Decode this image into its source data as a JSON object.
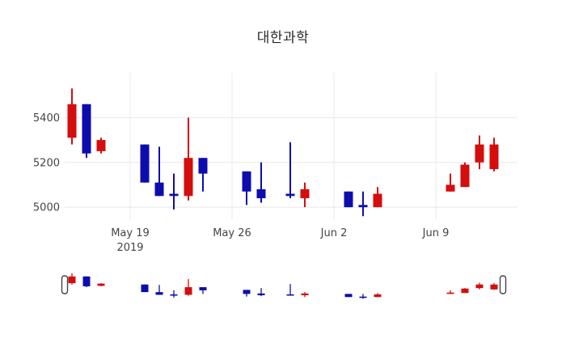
{
  "title": "대한과학",
  "colors": {
    "up": "#d40d0d",
    "down": "#0d0dad",
    "grid": "#e8e8e8",
    "axis_text": "#444444",
    "slider_handle_fill": "#ffffff",
    "slider_handle_border": "#444444",
    "background": "#ffffff"
  },
  "y_axis": {
    "ticks": [
      {
        "label": "5400",
        "value": 5400
      },
      {
        "label": "5200",
        "value": 5200
      },
      {
        "label": "5000",
        "value": 5000
      }
    ]
  },
  "x_axis": {
    "ticks": [
      {
        "label": "May 19",
        "sublabel": "2019",
        "date": "2019-05-19"
      },
      {
        "label": "May 26",
        "sublabel": "",
        "date": "2019-05-26"
      },
      {
        "label": "Jun 2",
        "sublabel": "",
        "date": "2019-06-02"
      },
      {
        "label": "Jun 9",
        "sublabel": "",
        "date": "2019-06-09"
      }
    ]
  },
  "chart_data": {
    "type": "candlestick",
    "title": "대한과학",
    "y_range": [
      4950,
      5600
    ],
    "x_range": [
      "2019-05-14",
      "2019-06-15"
    ],
    "grid": true,
    "rangeslider": true,
    "up_color": "#d40d0d",
    "down_color": "#0d0dad",
    "candles": [
      {
        "date": "2019-05-15",
        "open": 5310,
        "high": 5530,
        "low": 5280,
        "close": 5460
      },
      {
        "date": "2019-05-16",
        "open": 5460,
        "high": 5460,
        "low": 5220,
        "close": 5240
      },
      {
        "date": "2019-05-17",
        "open": 5250,
        "high": 5310,
        "low": 5240,
        "close": 5300
      },
      {
        "date": "2019-05-20",
        "open": 5280,
        "high": 5280,
        "low": 5110,
        "close": 5110
      },
      {
        "date": "2019-05-21",
        "open": 5110,
        "high": 5270,
        "low": 5050,
        "close": 5050
      },
      {
        "date": "2019-05-22",
        "open": 5060,
        "high": 5150,
        "low": 4990,
        "close": 5050
      },
      {
        "date": "2019-05-23",
        "open": 5050,
        "high": 5400,
        "low": 5030,
        "close": 5220
      },
      {
        "date": "2019-05-24",
        "open": 5220,
        "high": 5220,
        "low": 5070,
        "close": 5150
      },
      {
        "date": "2019-05-27",
        "open": 5160,
        "high": 5160,
        "low": 5010,
        "close": 5070
      },
      {
        "date": "2019-05-28",
        "open": 5080,
        "high": 5200,
        "low": 5020,
        "close": 5040
      },
      {
        "date": "2019-05-30",
        "open": 5060,
        "high": 5290,
        "low": 5040,
        "close": 5050
      },
      {
        "date": "2019-05-31",
        "open": 5040,
        "high": 5110,
        "low": 5000,
        "close": 5080
      },
      {
        "date": "2019-06-03",
        "open": 5070,
        "high": 5070,
        "low": 5000,
        "close": 5000
      },
      {
        "date": "2019-06-04",
        "open": 5010,
        "high": 5070,
        "low": 4960,
        "close": 5000
      },
      {
        "date": "2019-06-05",
        "open": 5000,
        "high": 5090,
        "low": 5000,
        "close": 5060
      },
      {
        "date": "2019-06-10",
        "open": 5070,
        "high": 5150,
        "low": 5070,
        "close": 5100
      },
      {
        "date": "2019-06-11",
        "open": 5090,
        "high": 5200,
        "low": 5090,
        "close": 5190
      },
      {
        "date": "2019-06-12",
        "open": 5200,
        "high": 5320,
        "low": 5170,
        "close": 5280
      },
      {
        "date": "2019-06-13",
        "open": 5170,
        "high": 5310,
        "low": 5160,
        "close": 5280
      }
    ]
  }
}
